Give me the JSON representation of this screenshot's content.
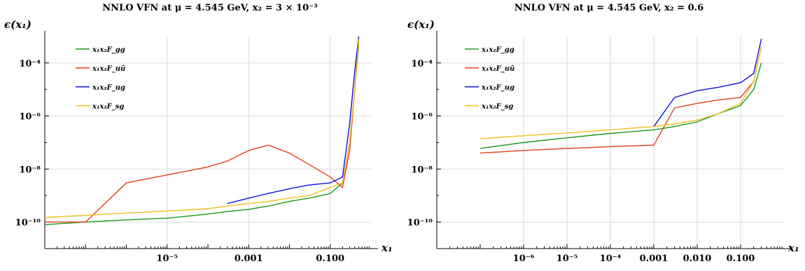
{
  "chart_data": [
    {
      "type": "line",
      "title": "NNLO VFN at μ = 4.545 GeV, x₂ = 3 × 10⁻³",
      "ylabel": "ϵ(x₁)",
      "xlabel": "x₁",
      "x_scale": "log",
      "y_scale": "log",
      "xlim": [
        1e-08,
        1
      ],
      "ylim": [
        1e-11,
        0.001
      ],
      "x_ticks": [
        {
          "value": 1e-05,
          "label": "10⁻⁵"
        },
        {
          "value": 0.001,
          "label": "0.001"
        },
        {
          "value": 0.1,
          "label": "0.100"
        }
      ],
      "y_ticks": [
        {
          "value": 0.0001,
          "label": "10⁻⁴"
        },
        {
          "value": 1e-06,
          "label": "10⁻⁶"
        },
        {
          "value": 1e-08,
          "label": "10⁻⁸"
        },
        {
          "value": 1e-10,
          "label": "10⁻¹⁰"
        }
      ],
      "grid": true,
      "legend_position": "top-left",
      "series": [
        {
          "name": "x₁x₂F_gg",
          "color": "#1a9a1a",
          "x": [
            1e-08,
            1e-07,
            1e-06,
            1e-05,
            0.0001,
            0.0003,
            0.001,
            0.003,
            0.01,
            0.03,
            0.1,
            0.2,
            0.3,
            0.4,
            0.5
          ],
          "y": [
            8e-11,
            1e-10,
            1.2e-10,
            1.4e-10,
            2e-10,
            2.5e-10,
            3e-10,
            4e-10,
            6e-10,
            8e-10,
            1.2e-09,
            3e-09,
            1e-07,
            1e-05,
            0.0005
          ]
        },
        {
          "name": "x₁x₂F_uū",
          "color": "#e0401a",
          "x": [
            1e-08,
            1e-07,
            1e-06,
            1e-05,
            0.0001,
            0.0003,
            0.001,
            0.003,
            0.01,
            0.03,
            0.1,
            0.2,
            0.3,
            0.4,
            0.5
          ],
          "y": [
            1e-10,
            1e-10,
            3e-09,
            6e-09,
            1.2e-08,
            2e-08,
            5e-08,
            8e-08,
            4e-08,
            1.5e-08,
            5e-09,
            2e-09,
            5e-08,
            1e-05,
            0.001
          ]
        },
        {
          "name": "x₁x₂F_ug",
          "color": "#1010e0",
          "x": [
            0.0003,
            0.001,
            0.003,
            0.01,
            0.03,
            0.1,
            0.2,
            0.3,
            0.4,
            0.5
          ],
          "y": [
            5e-10,
            8e-10,
            1.2e-09,
            1.8e-09,
            2.5e-09,
            3e-09,
            5e-09,
            5e-07,
            5e-05,
            0.001
          ]
        },
        {
          "name": "x₁x₂F_sg",
          "color": "#f0c020",
          "x": [
            1e-08,
            1e-07,
            1e-06,
            1e-05,
            0.0001,
            0.0003,
            0.001,
            0.003,
            0.01,
            0.03,
            0.1,
            0.2,
            0.3,
            0.4,
            0.5
          ],
          "y": [
            1.5e-10,
            1.8e-10,
            2.2e-10,
            2.6e-10,
            3.2e-10,
            4e-10,
            5e-10,
            6e-10,
            8e-10,
            1e-09,
            2e-09,
            3e-09,
            1e-07,
            1e-05,
            0.0008
          ]
        }
      ]
    },
    {
      "type": "line",
      "title": "NNLO VFN at μ = 4.545 GeV, x₂ = 0.6",
      "ylabel": "ϵ(x₁)",
      "xlabel": "x₁",
      "x_scale": "log",
      "y_scale": "log",
      "xlim": [
        1e-08,
        1
      ],
      "ylim": [
        1e-11,
        0.001
      ],
      "x_ticks": [
        {
          "value": 1e-06,
          "label": "10⁻⁶"
        },
        {
          "value": 1e-05,
          "label": "10⁻⁵"
        },
        {
          "value": 0.0001,
          "label": "10⁻⁴"
        },
        {
          "value": 0.001,
          "label": "0.001"
        },
        {
          "value": 0.01,
          "label": "0.010"
        },
        {
          "value": 0.1,
          "label": "0.100"
        }
      ],
      "y_ticks": [
        {
          "value": 0.0001,
          "label": "10⁻⁴"
        },
        {
          "value": 1e-06,
          "label": "10⁻⁶"
        },
        {
          "value": 1e-08,
          "label": "10⁻⁸"
        },
        {
          "value": 1e-10,
          "label": "10⁻¹⁰"
        }
      ],
      "grid": true,
      "legend_position": "top-left",
      "series": [
        {
          "name": "x₁x₂F_gg",
          "color": "#1a9a1a",
          "x": [
            1e-07,
            1e-06,
            1e-05,
            0.0001,
            0.001,
            0.003,
            0.01,
            0.03,
            0.1,
            0.2,
            0.3
          ],
          "y": [
            6e-08,
            1e-07,
            1.5e-07,
            2.2e-07,
            3e-07,
            4e-07,
            6e-07,
            1.2e-06,
            2.5e-06,
            1e-05,
            0.0001
          ]
        },
        {
          "name": "x₁x₂F_uū",
          "color": "#e0401a",
          "x": [
            1e-07,
            1e-06,
            1e-05,
            0.0001,
            0.001,
            0.003,
            0.01,
            0.03,
            0.1,
            0.2,
            0.3
          ],
          "y": [
            4e-08,
            5e-08,
            6e-08,
            7e-08,
            8e-08,
            2e-06,
            3e-06,
            4e-06,
            5e-06,
            2e-05,
            0.0004
          ]
        },
        {
          "name": "x₁x₂F_ug",
          "color": "#1010e0",
          "x": [
            0.001,
            0.003,
            0.01,
            0.03,
            0.1,
            0.2,
            0.3
          ],
          "y": [
            4e-07,
            5e-06,
            9e-06,
            1.2e-05,
            1.8e-05,
            4e-05,
            0.0008
          ]
        },
        {
          "name": "x₁x₂F_sg",
          "color": "#f0c020",
          "x": [
            1e-07,
            1e-06,
            1e-05,
            0.0001,
            0.001,
            0.003,
            0.01,
            0.03,
            0.1,
            0.2,
            0.3
          ],
          "y": [
            1.4e-07,
            1.8e-07,
            2.3e-07,
            3e-07,
            4e-07,
            5e-07,
            7e-07,
            1.2e-06,
            3e-06,
            2e-05,
            0.0004
          ]
        }
      ]
    }
  ]
}
